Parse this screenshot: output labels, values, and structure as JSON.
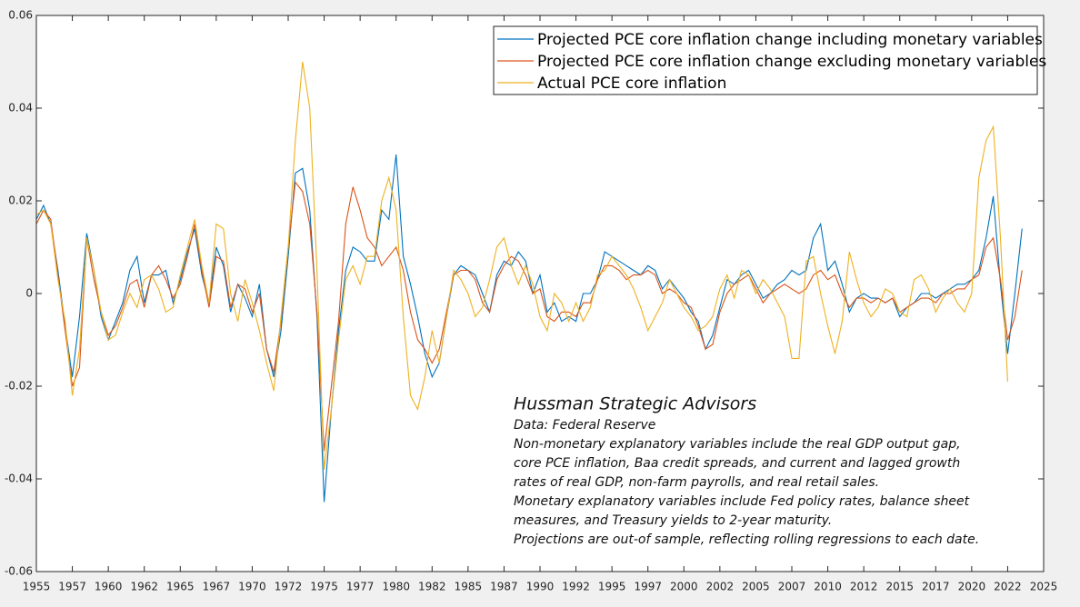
{
  "chart_data": {
    "type": "line",
    "x": [
      1955,
      1955.5,
      1956,
      1956.5,
      1957,
      1957.5,
      1958,
      1958.5,
      1959,
      1959.5,
      1960,
      1960.5,
      1961,
      1961.5,
      1962,
      1962.5,
      1963,
      1963.5,
      1964,
      1964.5,
      1965,
      1965.5,
      1966,
      1966.5,
      1967,
      1967.5,
      1968,
      1968.5,
      1969,
      1969.5,
      1970,
      1970.5,
      1971,
      1971.5,
      1972,
      1972.5,
      1973,
      1973.5,
      1974,
      1974.5,
      1975,
      1975.5,
      1976,
      1976.5,
      1977,
      1977.5,
      1978,
      1978.5,
      1979,
      1979.5,
      1980,
      1980.5,
      1981,
      1981.5,
      1982,
      1982.5,
      1983,
      1983.5,
      1984,
      1984.5,
      1985,
      1985.5,
      1986,
      1986.5,
      1987,
      1987.5,
      1988,
      1988.5,
      1989,
      1989.5,
      1990,
      1990.5,
      1991,
      1991.5,
      1992,
      1992.5,
      1993,
      1993.5,
      1994,
      1994.5,
      1995,
      1995.5,
      1996,
      1996.5,
      1997,
      1997.5,
      1998,
      1998.5,
      1999,
      1999.5,
      2000,
      2000.5,
      2001,
      2001.5,
      2002,
      2002.5,
      2003,
      2003.5,
      2004,
      2004.5,
      2005,
      2005.5,
      2006,
      2006.5,
      2007,
      2007.5,
      2008,
      2008.5,
      2009,
      2009.5,
      2010,
      2010.5,
      2011,
      2011.5,
      2012,
      2012.5,
      2013,
      2013.5,
      2014,
      2014.5,
      2015,
      2015.5,
      2016,
      2016.5,
      2017,
      2017.5,
      2018,
      2018.5,
      2019,
      2019.5,
      2020,
      2020.5,
      2021,
      2021.5,
      2022,
      2022.5,
      2023,
      2023.5
    ],
    "series": [
      {
        "name": "Projected PCE core inflation change including monetary variables",
        "color": "#0072BD",
        "values": [
          0.016,
          0.019,
          0.015,
          0.005,
          -0.007,
          -0.018,
          -0.005,
          0.013,
          0.005,
          -0.005,
          -0.01,
          -0.006,
          -0.002,
          0.005,
          0.008,
          -0.002,
          0.004,
          0.004,
          0.005,
          -0.002,
          0.003,
          0.009,
          0.014,
          0.004,
          -0.002,
          0.01,
          0.006,
          -0.004,
          0.002,
          -0.001,
          -0.005,
          0.002,
          -0.012,
          -0.018,
          -0.008,
          0.008,
          0.026,
          0.027,
          0.018,
          -0.005,
          -0.045,
          -0.025,
          -0.008,
          0.005,
          0.01,
          0.009,
          0.007,
          0.007,
          0.018,
          0.016,
          0.03,
          0.008,
          0.002,
          -0.005,
          -0.013,
          -0.018,
          -0.015,
          -0.005,
          0.004,
          0.006,
          0.005,
          0.004,
          0,
          -0.004,
          0.004,
          0.007,
          0.006,
          0.009,
          0.007,
          0,
          0.004,
          -0.004,
          -0.002,
          -0.006,
          -0.005,
          -0.006,
          0,
          0,
          0.003,
          0.009,
          0.008,
          0.007,
          0.006,
          0.005,
          0.004,
          0.006,
          0.005,
          0.001,
          0.003,
          0.001,
          -0.001,
          -0.004,
          -0.006,
          -0.012,
          -0.009,
          -0.003,
          0.003,
          0.002,
          0.004,
          0.005,
          0.002,
          -0.001,
          0,
          0.002,
          0.003,
          0.005,
          0.004,
          0.005,
          0.012,
          0.015,
          0.005,
          0.007,
          0.002,
          -0.004,
          -0.001,
          0,
          -0.001,
          -0.001,
          -0.002,
          -0.001,
          -0.005,
          -0.003,
          -0.002,
          0,
          0,
          -0.001,
          0,
          0.001,
          0.002,
          0.002,
          0.003,
          0.005,
          0.012,
          0.021,
          0.002,
          -0.013,
          0,
          0.014
        ]
      },
      {
        "name": "Projected PCE core inflation change excluding monetary variables",
        "color": "#D95319",
        "values": [
          0.015,
          0.018,
          0.016,
          0.004,
          -0.008,
          -0.02,
          -0.016,
          0.012,
          0.003,
          -0.004,
          -0.009,
          -0.007,
          -0.003,
          0.002,
          0.003,
          -0.003,
          0.004,
          0.006,
          0.003,
          -0.001,
          0.002,
          0.008,
          0.015,
          0.005,
          -0.003,
          0.008,
          0.007,
          -0.003,
          0.002,
          0.001,
          -0.004,
          0,
          -0.012,
          -0.017,
          -0.006,
          0.01,
          0.024,
          0.022,
          0.015,
          -0.004,
          -0.034,
          -0.02,
          -0.006,
          0.015,
          0.023,
          0.018,
          0.012,
          0.01,
          0.006,
          0.008,
          0.01,
          0.005,
          -0.004,
          -0.01,
          -0.012,
          -0.015,
          -0.012,
          -0.004,
          0.004,
          0.005,
          0.005,
          0.003,
          -0.002,
          -0.004,
          0.003,
          0.006,
          0.008,
          0.007,
          0.004,
          0,
          0.001,
          -0.005,
          -0.006,
          -0.004,
          -0.004,
          -0.005,
          -0.002,
          -0.002,
          0.003,
          0.006,
          0.006,
          0.005,
          0.003,
          0.004,
          0.004,
          0.005,
          0.004,
          0,
          0.001,
          0,
          -0.002,
          -0.003,
          -0.007,
          -0.012,
          -0.011,
          -0.004,
          0,
          0.002,
          0.003,
          0.004,
          0.001,
          -0.002,
          0,
          0.001,
          0.002,
          0.001,
          0,
          0.001,
          0.004,
          0.005,
          0.003,
          0.004,
          0,
          -0.003,
          -0.001,
          -0.001,
          -0.002,
          -0.001,
          -0.002,
          -0.001,
          -0.004,
          -0.003,
          -0.002,
          -0.001,
          -0.001,
          -0.002,
          0,
          0,
          0.001,
          0.001,
          0.003,
          0.004,
          0.01,
          0.012,
          0.003,
          -0.01,
          -0.005,
          0.005
        ]
      },
      {
        "name": "Actual PCE core inflation",
        "color": "#EDB120",
        "values": [
          0.017,
          0.018,
          0.015,
          0.003,
          -0.006,
          -0.022,
          -0.012,
          0.012,
          0.005,
          -0.004,
          -0.01,
          -0.009,
          -0.004,
          0,
          -0.003,
          0.003,
          0.004,
          0.001,
          -0.004,
          -0.003,
          0.004,
          0.01,
          0.016,
          0.006,
          -0.002,
          0.015,
          0.014,
          0,
          -0.006,
          0.003,
          -0.002,
          -0.008,
          -0.015,
          -0.021,
          -0.005,
          0.01,
          0.033,
          0.05,
          0.04,
          0.005,
          -0.038,
          -0.025,
          -0.01,
          0.003,
          0.006,
          0.002,
          0.008,
          0.008,
          0.02,
          0.025,
          0.018,
          -0.005,
          -0.022,
          -0.025,
          -0.018,
          -0.008,
          -0.015,
          -0.005,
          0.005,
          0.003,
          0,
          -0.005,
          -0.003,
          0.003,
          0.01,
          0.012,
          0.006,
          0.002,
          0.006,
          0.002,
          -0.005,
          -0.008,
          0,
          -0.002,
          -0.006,
          -0.002,
          -0.006,
          -0.003,
          0.004,
          0.005,
          0.008,
          0.006,
          0.004,
          0.001,
          -0.003,
          -0.008,
          -0.005,
          -0.002,
          0.003,
          0,
          -0.003,
          -0.005,
          -0.008,
          -0.007,
          -0.005,
          0.001,
          0.004,
          -0.001,
          0.005,
          0.004,
          0,
          0.003,
          0.001,
          -0.002,
          -0.005,
          -0.014,
          -0.014,
          0.007,
          0.008,
          0,
          -0.007,
          -0.013,
          -0.006,
          0.009,
          0.003,
          -0.002,
          -0.005,
          -0.003,
          0.001,
          0,
          -0.004,
          -0.005,
          0.003,
          0.004,
          0.001,
          -0.004,
          -0.001,
          0.001,
          -0.002,
          -0.004,
          0,
          0.025,
          0.033,
          0.036,
          0.012,
          -0.019,
          null,
          null
        ]
      }
    ],
    "xlim": [
      1955,
      2025
    ],
    "xticks": [
      1955,
      {
        "value": 1957.5,
        "label": "1957"
      },
      1960,
      {
        "value": 1962.5,
        "label": "1962"
      },
      1965,
      {
        "value": 1967.5,
        "label": "1967"
      },
      1970,
      {
        "value": 1972.5,
        "label": "1972"
      },
      1975,
      {
        "value": 1977.5,
        "label": "1977"
      },
      1980,
      {
        "value": 1982.5,
        "label": "1982"
      },
      1985,
      {
        "value": 1987.5,
        "label": "1987"
      },
      1990,
      {
        "value": 1992.5,
        "label": "1992"
      },
      1995,
      {
        "value": 1997.5,
        "label": "1997"
      },
      2000,
      {
        "value": 2002.5,
        "label": "2002"
      },
      2005,
      {
        "value": 2007.5,
        "label": "2007"
      },
      2010,
      {
        "value": 2012.5,
        "label": "2012"
      },
      2015,
      {
        "value": 2017.5,
        "label": "2017"
      },
      2020,
      {
        "value": 2022.5,
        "label": "2022"
      },
      2025
    ],
    "ylim": [
      -0.06,
      0.06
    ],
    "yticks": [
      -0.06,
      -0.04,
      -0.02,
      0,
      0.02,
      0.04,
      0.06
    ],
    "grid": false,
    "legend": "upper right",
    "annotation": {
      "title": "Hussman Strategic Advisors",
      "lines": [
        "Data: Federal Reserve",
        "Non-monetary explanatory variables include the real GDP output gap,",
        "core PCE inflation, Baa credit spreads, and current and lagged growth",
        "rates of real GDP, non-farm payrolls, and real retail sales.",
        "Monetary explanatory variables include Fed policy rates, balance sheet",
        "measures, and Treasury yields to 2-year maturity.",
        "Projections are out-of sample, reflecting rolling regressions to each date."
      ]
    }
  }
}
